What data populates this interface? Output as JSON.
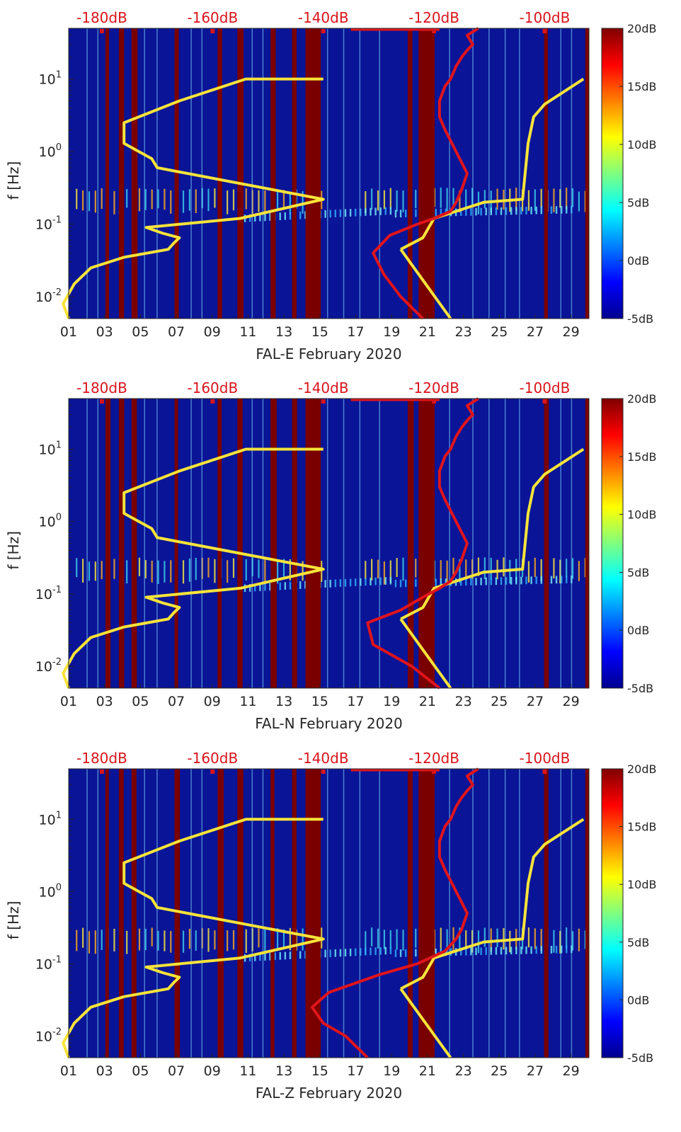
{
  "colors": {
    "background_low": "#0a1496",
    "stripe_dark_red": "#7a0000",
    "reference_model_line": "#f8e43a",
    "noise_psd_line": "#e0141c",
    "top_axis_text": "#d9141c",
    "axis_text": "#262626"
  },
  "chart_data": [
    {
      "type": "heatmap",
      "panel": "east",
      "xlabel": "FAL-E February 2020",
      "ylabel": "f [Hz]",
      "x_range": [
        1,
        30
      ],
      "y_range": [
        0.005,
        50
      ],
      "y_scale": "log",
      "x_ticks": [
        "01",
        "03",
        "05",
        "07",
        "09",
        "11",
        "13",
        "15",
        "17",
        "19",
        "21",
        "23",
        "25",
        "27",
        "29"
      ],
      "y_ticks": [
        {
          "value": 0.01,
          "base": "10",
          "exp": "-2"
        },
        {
          "value": 0.1,
          "base": "10",
          "exp": "-1"
        },
        {
          "value": 1,
          "base": "10",
          "exp": "0"
        },
        {
          "value": 10,
          "base": "10",
          "exp": "1"
        }
      ],
      "top_axis_ticks": [
        "-180dB",
        "-160dB",
        "-140dB",
        "-120dB",
        "-100dB"
      ],
      "top_axis_range_db": [
        -186,
        -92
      ],
      "colorbar": {
        "range_db": [
          -5,
          20
        ],
        "ticks": [
          "20dB",
          "15dB",
          "10dB",
          "5dB",
          "0dB",
          "-5dB"
        ]
      },
      "series": [
        {
          "name": "reference noise model (yellow)",
          "x_db": [
            -186,
            -187,
            -185,
            -182,
            -176,
            -168,
            -167,
            -166,
            -169,
            -172,
            -155,
            -140,
            -170,
            -171,
            -176,
            -176,
            -166,
            -154,
            -140,
            -126,
            -122,
            -120,
            -111,
            -104,
            -103,
            -102,
            -100,
            -93
          ],
          "f_hz": [
            0.005,
            0.008,
            0.015,
            0.025,
            0.035,
            0.045,
            0.055,
            0.065,
            0.075,
            0.09,
            0.12,
            0.22,
            0.6,
            0.8,
            1.3,
            2.5,
            5,
            10,
            10,
            0.045,
            0.065,
            0.12,
            0.2,
            0.22,
            1.3,
            3,
            4.5,
            10
          ]
        },
        {
          "name": "median noise level (red)",
          "x_db": [
            -122,
            -126,
            -129,
            -131,
            -128,
            -123,
            -120,
            -117,
            -116,
            -115,
            -114,
            -116,
            -118,
            -119,
            -119,
            -118,
            -117,
            -116,
            -115,
            -114,
            -113,
            -114,
            -112
          ],
          "f_hz": [
            0.005,
            0.01,
            0.02,
            0.04,
            0.07,
            0.1,
            0.12,
            0.15,
            0.2,
            0.3,
            0.5,
            1,
            2,
            3,
            5,
            8,
            10,
            15,
            20,
            25,
            30,
            40,
            50
          ]
        }
      ]
    },
    {
      "type": "heatmap",
      "panel": "north",
      "xlabel": "FAL-N February 2020",
      "ylabel": "f [Hz]",
      "x_range": [
        1,
        30
      ],
      "y_range": [
        0.005,
        50
      ],
      "y_scale": "log",
      "x_ticks": [
        "01",
        "03",
        "05",
        "07",
        "09",
        "11",
        "13",
        "15",
        "17",
        "19",
        "21",
        "23",
        "25",
        "27",
        "29"
      ],
      "y_ticks": [
        {
          "value": 0.01,
          "base": "10",
          "exp": "-2"
        },
        {
          "value": 0.1,
          "base": "10",
          "exp": "-1"
        },
        {
          "value": 1,
          "base": "10",
          "exp": "0"
        },
        {
          "value": 10,
          "base": "10",
          "exp": "1"
        }
      ],
      "top_axis_ticks": [
        "-180dB",
        "-160dB",
        "-140dB",
        "-120dB",
        "-100dB"
      ],
      "top_axis_range_db": [
        -186,
        -92
      ],
      "colorbar": {
        "range_db": [
          -5,
          20
        ],
        "ticks": [
          "20dB",
          "15dB",
          "10dB",
          "5dB",
          "0dB",
          "-5dB"
        ]
      },
      "series": [
        {
          "name": "reference noise model (yellow)",
          "x_db": [
            -186,
            -187,
            -185,
            -182,
            -176,
            -168,
            -167,
            -166,
            -169,
            -172,
            -155,
            -140,
            -170,
            -171,
            -176,
            -176,
            -166,
            -154,
            -140,
            -126,
            -122,
            -120,
            -111,
            -104,
            -103,
            -102,
            -100,
            -93
          ],
          "f_hz": [
            0.005,
            0.008,
            0.015,
            0.025,
            0.035,
            0.045,
            0.055,
            0.065,
            0.075,
            0.09,
            0.12,
            0.22,
            0.6,
            0.8,
            1.3,
            2.5,
            5,
            10,
            10,
            0.045,
            0.065,
            0.12,
            0.2,
            0.22,
            1.3,
            3,
            4.5,
            10
          ]
        },
        {
          "name": "median noise level (red)",
          "x_db": [
            -119,
            -124,
            -131,
            -132,
            -126,
            -122,
            -119,
            -117,
            -116,
            -115,
            -114,
            -116,
            -118,
            -119,
            -119,
            -118,
            -117,
            -116,
            -115,
            -114,
            -113,
            -114,
            -112
          ],
          "f_hz": [
            0.005,
            0.01,
            0.02,
            0.04,
            0.06,
            0.09,
            0.12,
            0.15,
            0.2,
            0.3,
            0.5,
            1,
            2,
            3,
            5,
            8,
            10,
            15,
            20,
            25,
            30,
            40,
            50
          ]
        }
      ]
    },
    {
      "type": "heatmap",
      "panel": "vertical",
      "xlabel": "FAL-Z February 2020",
      "ylabel": "f [Hz]",
      "x_range": [
        1,
        30
      ],
      "y_range": [
        0.005,
        50
      ],
      "y_scale": "log",
      "x_ticks": [
        "01",
        "03",
        "05",
        "07",
        "09",
        "11",
        "13",
        "15",
        "17",
        "19",
        "21",
        "23",
        "25",
        "27",
        "29"
      ],
      "y_ticks": [
        {
          "value": 0.01,
          "base": "10",
          "exp": "-2"
        },
        {
          "value": 0.1,
          "base": "10",
          "exp": "-1"
        },
        {
          "value": 1,
          "base": "10",
          "exp": "0"
        },
        {
          "value": 10,
          "base": "10",
          "exp": "1"
        }
      ],
      "top_axis_ticks": [
        "-180dB",
        "-160dB",
        "-140dB",
        "-120dB",
        "-100dB"
      ],
      "top_axis_range_db": [
        -186,
        -92
      ],
      "colorbar": {
        "range_db": [
          -5,
          20
        ],
        "ticks": [
          "20dB",
          "15dB",
          "10dB",
          "5dB",
          "0dB",
          "-5dB"
        ]
      },
      "series": [
        {
          "name": "reference noise model (yellow)",
          "x_db": [
            -186,
            -187,
            -185,
            -182,
            -176,
            -168,
            -167,
            -166,
            -169,
            -172,
            -155,
            -140,
            -170,
            -171,
            -176,
            -176,
            -166,
            -154,
            -140,
            -126,
            -122,
            -120,
            -111,
            -104,
            -103,
            -102,
            -100,
            -93
          ],
          "f_hz": [
            0.005,
            0.008,
            0.015,
            0.025,
            0.035,
            0.045,
            0.055,
            0.065,
            0.075,
            0.09,
            0.12,
            0.22,
            0.6,
            0.8,
            1.3,
            2.5,
            5,
            10,
            10,
            0.045,
            0.065,
            0.12,
            0.2,
            0.22,
            1.3,
            3,
            4.5,
            10
          ]
        },
        {
          "name": "median noise level (red)",
          "x_db": [
            -132,
            -136,
            -140,
            -142,
            -139,
            -130,
            -123,
            -118,
            -116,
            -115,
            -114,
            -116,
            -118,
            -119,
            -119,
            -118,
            -117,
            -116,
            -115,
            -114,
            -113,
            -114,
            -112
          ],
          "f_hz": [
            0.005,
            0.01,
            0.015,
            0.025,
            0.04,
            0.07,
            0.1,
            0.15,
            0.22,
            0.3,
            0.5,
            1,
            2,
            3,
            5,
            8,
            10,
            15,
            20,
            25,
            30,
            40,
            50
          ]
        }
      ]
    }
  ]
}
